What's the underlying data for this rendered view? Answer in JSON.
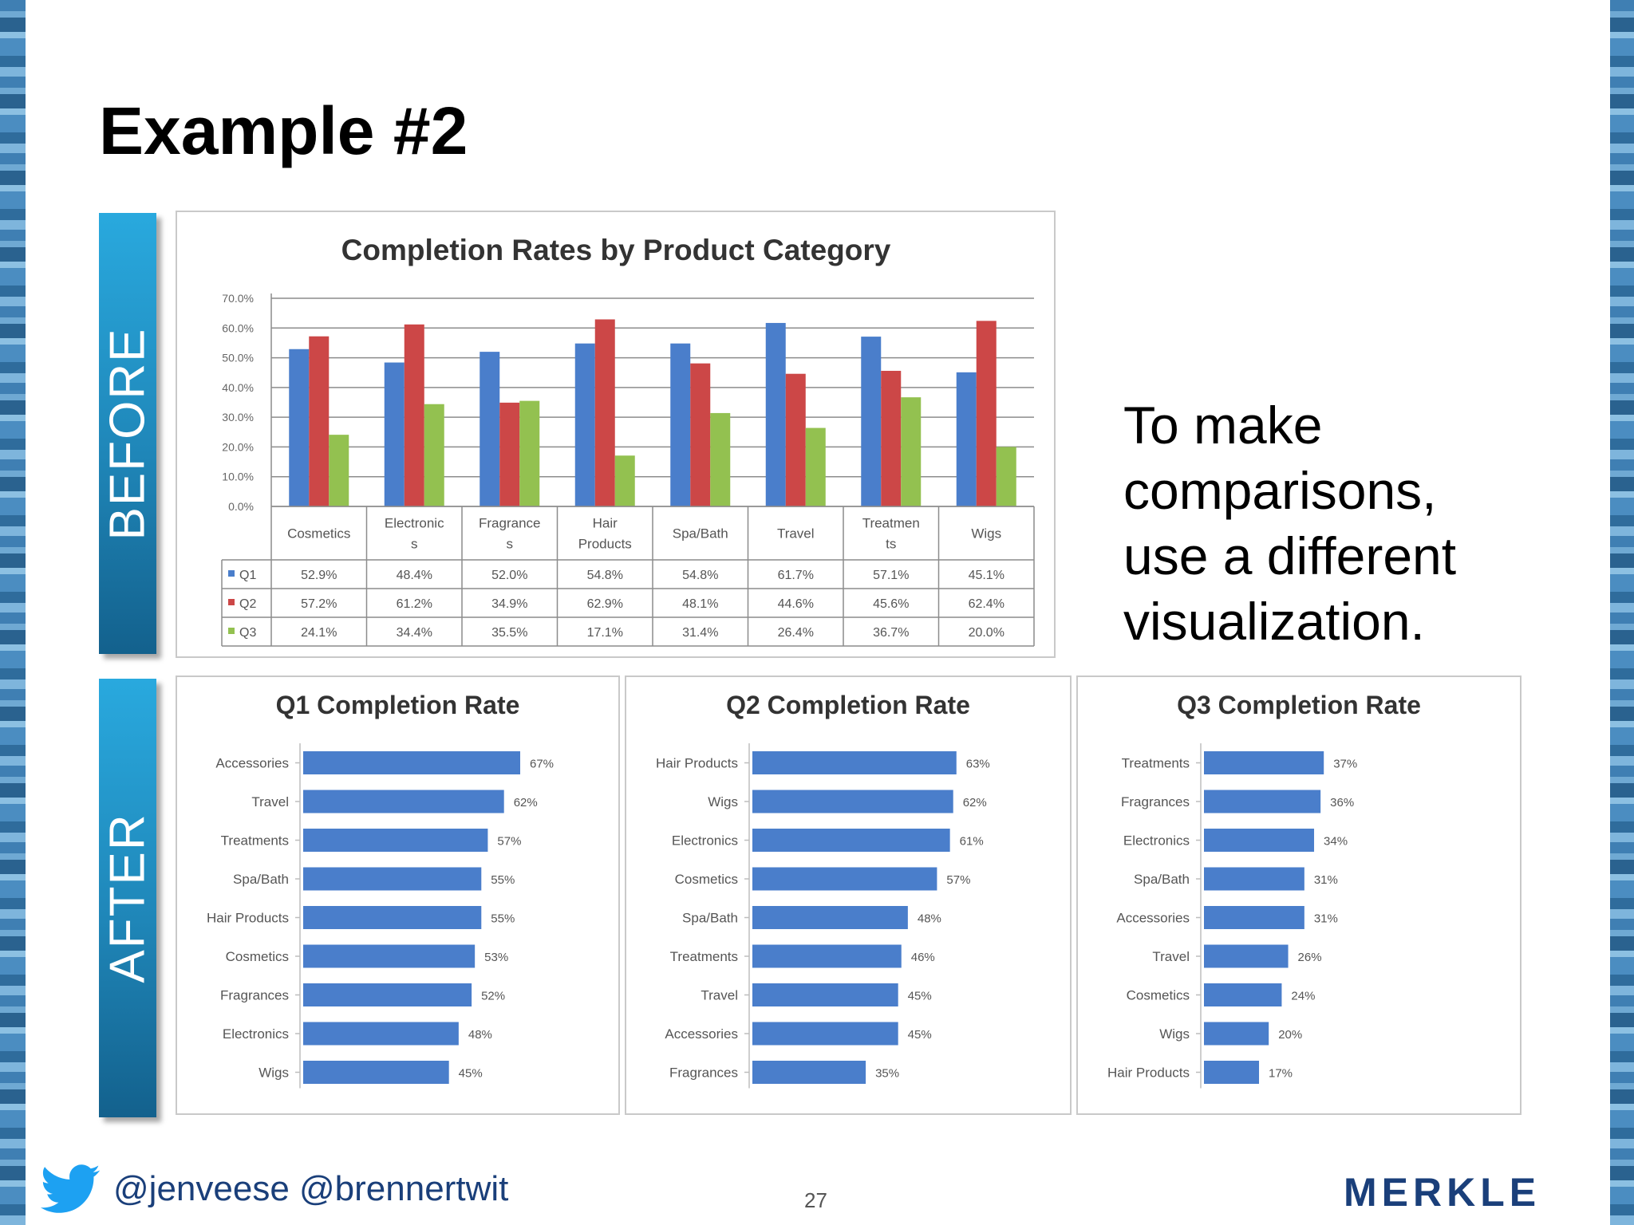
{
  "slide": {
    "title": "Example #2",
    "before_label": "BEFORE",
    "after_label": "AFTER",
    "side_text": [
      "To make",
      "comparisons,",
      "use a different",
      "visualization."
    ],
    "footer_handles": "@jenveese @brennertwit",
    "page_number": "27",
    "logo_text": "MERKLE"
  },
  "colors": {
    "q1": "#4a7ecb",
    "q2": "#cc4747",
    "q3": "#93c150",
    "bar": "#4a7ecb",
    "accent": "#1f86b8",
    "twitter": "#1da1f2"
  },
  "chart_data": [
    {
      "type": "bar",
      "title": "Completion Rates by Product Category",
      "categories": [
        "Cosmetics",
        "Electronics",
        "Fragrances",
        "Hair Products",
        "Spa/Bath",
        "Travel",
        "Treatments",
        "Wigs"
      ],
      "category_labels": [
        [
          "Cosmetics"
        ],
        [
          "Electronic",
          "s"
        ],
        [
          "Fragrance",
          "s"
        ],
        [
          "Hair",
          "Products"
        ],
        [
          "Spa/Bath"
        ],
        [
          "Travel"
        ],
        [
          "Treatmen",
          "ts"
        ],
        [
          "Wigs"
        ]
      ],
      "series": [
        {
          "name": "Q1",
          "values": [
            52.9,
            48.4,
            52.0,
            54.8,
            54.8,
            61.7,
            57.1,
            45.1
          ],
          "labels": [
            "52.9%",
            "48.4%",
            "52.0%",
            "54.8%",
            "54.8%",
            "61.7%",
            "57.1%",
            "45.1%"
          ]
        },
        {
          "name": "Q2",
          "values": [
            57.2,
            61.2,
            34.9,
            62.9,
            48.1,
            44.6,
            45.6,
            62.4
          ],
          "labels": [
            "57.2%",
            "61.2%",
            "34.9%",
            "62.9%",
            "48.1%",
            "44.6%",
            "45.6%",
            "62.4%"
          ]
        },
        {
          "name": "Q3",
          "values": [
            24.1,
            34.4,
            35.5,
            17.1,
            31.4,
            26.4,
            36.7,
            20.0
          ],
          "labels": [
            "24.1%",
            "34.4%",
            "35.5%",
            "17.1%",
            "31.4%",
            "26.4%",
            "36.7%",
            "20.0%"
          ]
        }
      ],
      "ylim": [
        0,
        70
      ],
      "yticks": [
        "0.0%",
        "10.0%",
        "20.0%",
        "30.0%",
        "40.0%",
        "50.0%",
        "60.0%",
        "70.0%"
      ],
      "grid": true,
      "legend": "data-table"
    },
    {
      "type": "bar",
      "orientation": "horizontal",
      "title": "Q1 Completion Rate",
      "categories": [
        "Accessories",
        "Travel",
        "Treatments",
        "Spa/Bath",
        "Hair Products",
        "Cosmetics",
        "Fragrances",
        "Electronics",
        "Wigs"
      ],
      "values": [
        67,
        62,
        57,
        55,
        55,
        53,
        52,
        48,
        45
      ],
      "labels": [
        "67%",
        "62%",
        "57%",
        "55%",
        "55%",
        "53%",
        "52%",
        "48%",
        "45%"
      ]
    },
    {
      "type": "bar",
      "orientation": "horizontal",
      "title": "Q2 Completion Rate",
      "categories": [
        "Hair Products",
        "Wigs",
        "Electronics",
        "Cosmetics",
        "Spa/Bath",
        "Treatments",
        "Travel",
        "Accessories",
        "Fragrances"
      ],
      "values": [
        63,
        62,
        61,
        57,
        48,
        46,
        45,
        45,
        35
      ],
      "labels": [
        "63%",
        "62%",
        "61%",
        "57%",
        "48%",
        "46%",
        "45%",
        "45%",
        "35%"
      ]
    },
    {
      "type": "bar",
      "orientation": "horizontal",
      "title": "Q3 Completion Rate",
      "categories": [
        "Treatments",
        "Fragrances",
        "Electronics",
        "Spa/Bath",
        "Accessories",
        "Travel",
        "Cosmetics",
        "Wigs",
        "Hair Products"
      ],
      "values": [
        37,
        36,
        34,
        31,
        31,
        26,
        24,
        20,
        17
      ],
      "labels": [
        "37%",
        "36%",
        "34%",
        "31%",
        "31%",
        "26%",
        "24%",
        "20%",
        "17%"
      ]
    }
  ]
}
